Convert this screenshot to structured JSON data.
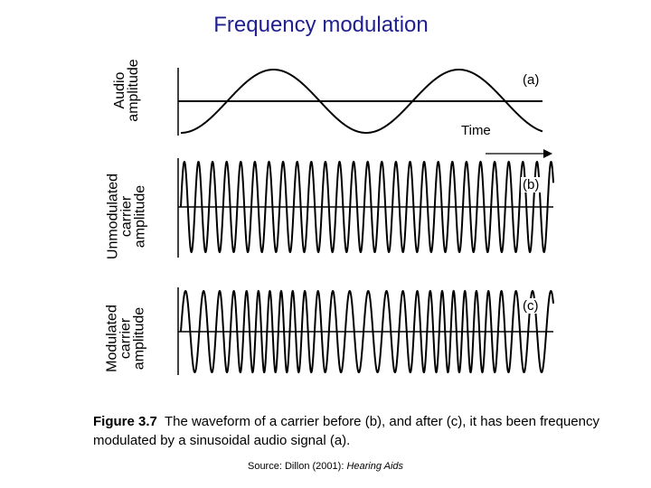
{
  "title": "Frequency modulation",
  "panels": [
    {
      "id": "a",
      "label": "(a)",
      "y_label": "Audio\namplitude"
    },
    {
      "id": "b",
      "label": "(b)",
      "y_label": "Unmodulated\ncarrier\namplitude"
    },
    {
      "id": "c",
      "label": "(c)",
      "y_label": "Modulated\ncarrier\namplitude"
    }
  ],
  "time_label": "Time",
  "caption": {
    "figure_number": "Figure 3.7",
    "text": "The waveform of a carrier before (b), and after (c), it has been frequency modulated by a sinusoidal audio signal (a)."
  },
  "source": {
    "prefix": "Source:  Dillon (2001): ",
    "work": "Hearing Aids"
  }
}
